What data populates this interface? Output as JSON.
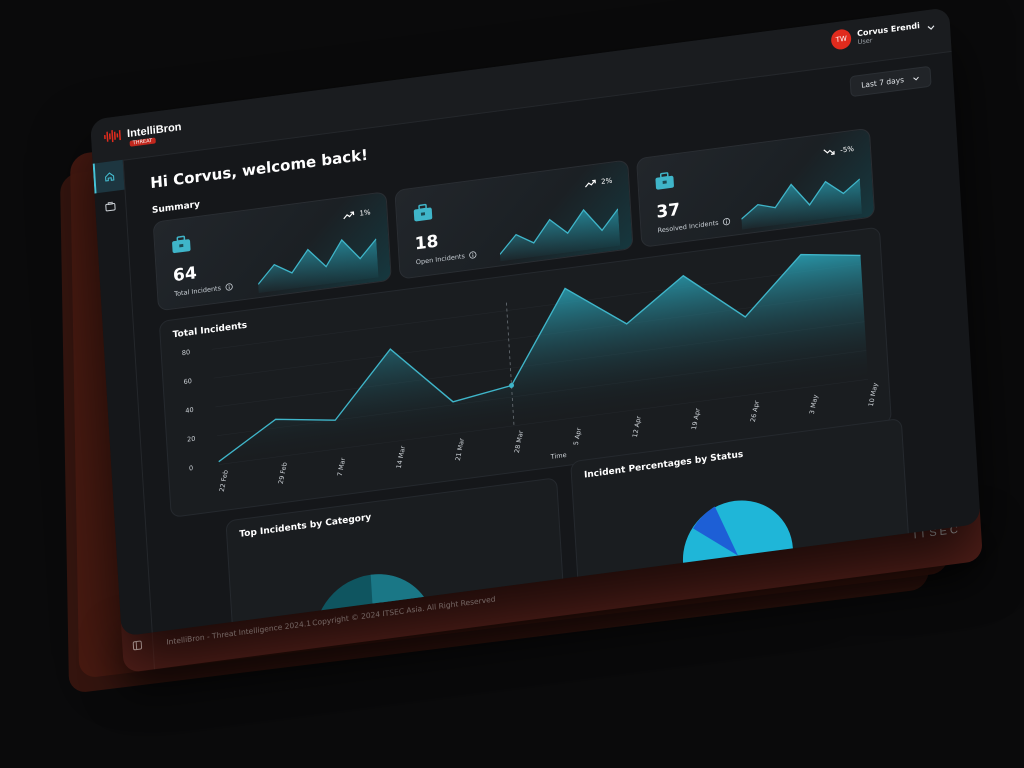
{
  "app": {
    "name": "IntelliBron",
    "tag": "THREAT"
  },
  "user": {
    "initials": "TW",
    "name": "Corvus Erendi",
    "role": "User"
  },
  "greeting": "Hi Corvus, welcome back!",
  "range": {
    "selected": "Last 7 days"
  },
  "summary": {
    "title": "Summary",
    "cards": [
      {
        "value": "64",
        "label": "Total Incidents",
        "change": "1%",
        "trend": "up",
        "spark": [
          10,
          30,
          18,
          42,
          20,
          48,
          24,
          44
        ]
      },
      {
        "value": "18",
        "label": "Open Incidents",
        "change": "2%",
        "trend": "up",
        "spark": [
          8,
          28,
          16,
          40,
          22,
          46,
          20,
          42
        ]
      },
      {
        "value": "37",
        "label": "Resolved Incidents",
        "change": "-5%",
        "trend": "down",
        "spark": [
          12,
          26,
          20,
          44,
          18,
          42,
          26,
          40
        ]
      }
    ]
  },
  "chart_data": {
    "type": "area",
    "title": "Total Incidents",
    "xlabel": "Time",
    "ylabel": "",
    "ylim": [
      0,
      80
    ],
    "yticks": [
      "0",
      "20",
      "40",
      "60",
      "80"
    ],
    "categories": [
      "22 Feb",
      "29 Feb",
      "7 Mar",
      "14 Mar",
      "21 Mar",
      "28 Mar",
      "5 Apr",
      "12 Apr",
      "19 Apr",
      "26 Apr",
      "3 May",
      "10 May"
    ],
    "values": [
      2,
      26,
      20,
      64,
      22,
      28,
      90,
      60,
      88,
      54,
      92,
      86
    ],
    "marker_index": 5
  },
  "panels": {
    "categories_title": "Top Incidents by Category",
    "status_title": "Incident Percentages by Status"
  },
  "footer": {
    "version": "IntelliBron - Threat Intelligence 2024.1",
    "copyright": "Copyright © 2024 ITSEC Asia. All Right Reserved",
    "brand": "ITSEC"
  },
  "colors": {
    "accent": "#46c3d7",
    "avatar": "#e02b1d",
    "footer": "#54201a"
  }
}
